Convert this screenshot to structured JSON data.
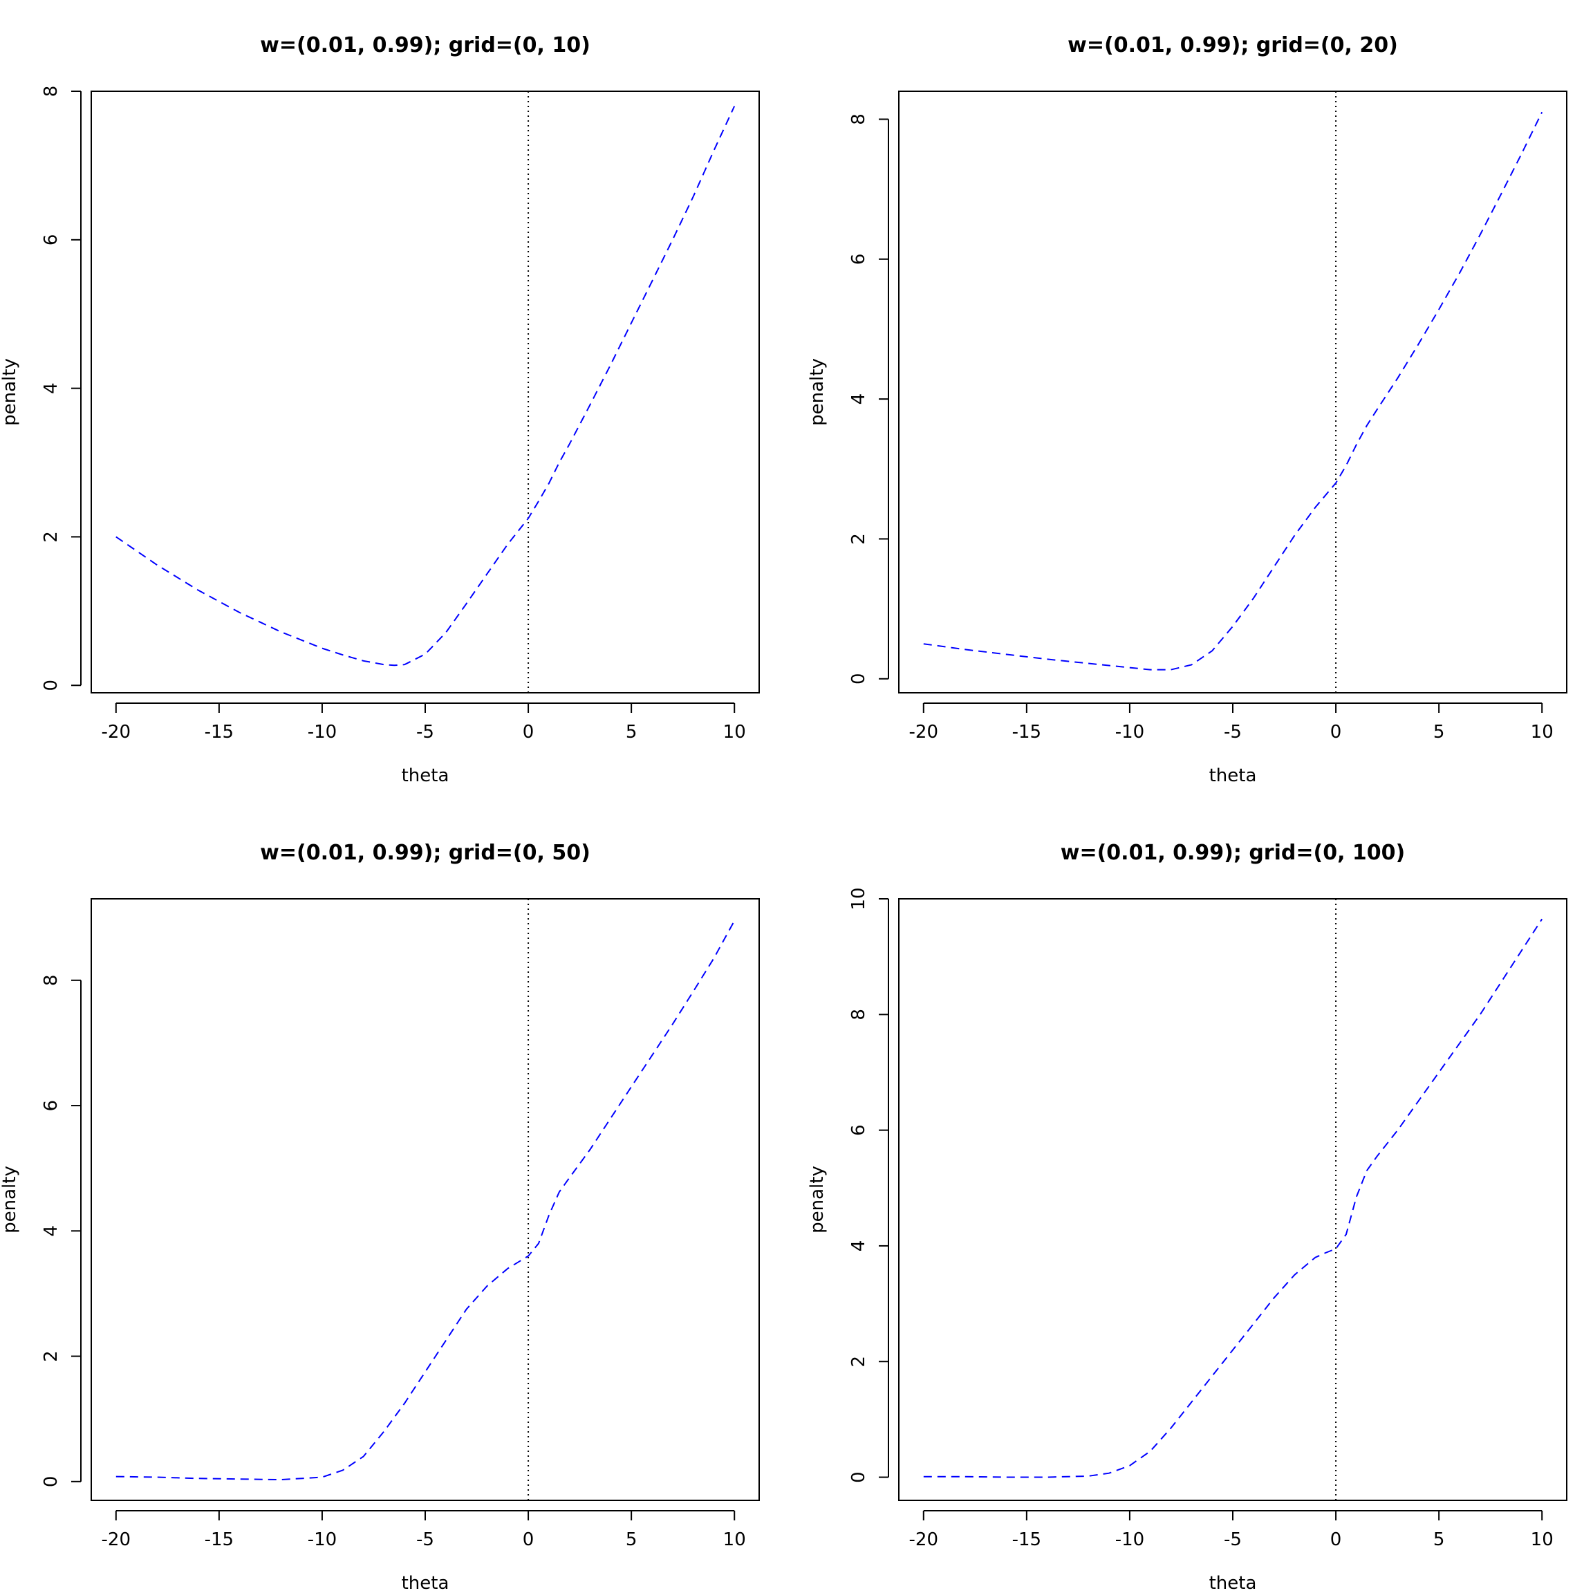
{
  "figure": {
    "background": "#ffffff"
  },
  "style": {
    "curve_color": "#0000ff",
    "vline_color": "#000000",
    "axis_color": "#000000"
  },
  "chart_data": [
    {
      "type": "line",
      "title": "w=(0.01, 0.99); grid=(0, 10)",
      "xlabel": "theta",
      "ylabel": "penalty",
      "xlim": [
        -21.2,
        11.2
      ],
      "ylim": [
        -0.1,
        8.0
      ],
      "xticks": [
        -20,
        -15,
        -10,
        -5,
        0,
        5,
        10
      ],
      "yticks": [
        0,
        2,
        4,
        6,
        8
      ],
      "line_style": "dashed",
      "vline": {
        "x": 0,
        "style": "dotted"
      },
      "series": [
        {
          "x": [
            -20,
            -18,
            -16,
            -14,
            -12,
            -10,
            -9,
            -8,
            -7,
            -6.5,
            -6,
            -5,
            -4,
            -3,
            -2,
            -1,
            0,
            0.5,
            1,
            1.5,
            2,
            3,
            4,
            5,
            6,
            7,
            8,
            9,
            10
          ],
          "y": [
            2.0,
            1.62,
            1.28,
            0.98,
            0.72,
            0.5,
            0.41,
            0.33,
            0.28,
            0.27,
            0.28,
            0.42,
            0.71,
            1.1,
            1.5,
            1.9,
            2.25,
            2.48,
            2.72,
            3.0,
            3.25,
            3.78,
            4.32,
            4.88,
            5.44,
            6.0,
            6.58,
            7.2,
            7.8
          ]
        }
      ]
    },
    {
      "type": "line",
      "title": "w=(0.01, 0.99); grid=(0, 20)",
      "xlabel": "theta",
      "ylabel": "penalty",
      "xlim": [
        -21.2,
        11.2
      ],
      "ylim": [
        -0.2,
        8.4
      ],
      "xticks": [
        -20,
        -15,
        -10,
        -5,
        0,
        5,
        10
      ],
      "yticks": [
        0,
        2,
        4,
        6,
        8
      ],
      "line_style": "dashed",
      "vline": {
        "x": 0,
        "style": "dotted"
      },
      "series": [
        {
          "x": [
            -20,
            -18,
            -16,
            -14,
            -12,
            -10,
            -9,
            -8,
            -7,
            -6,
            -5,
            -4,
            -3,
            -2,
            -1,
            0,
            0.5,
            1,
            1.5,
            2,
            3,
            4,
            5,
            6,
            7,
            8,
            9,
            10
          ],
          "y": [
            0.5,
            0.42,
            0.35,
            0.28,
            0.22,
            0.16,
            0.13,
            0.13,
            0.2,
            0.4,
            0.75,
            1.15,
            1.6,
            2.05,
            2.45,
            2.8,
            3.05,
            3.35,
            3.62,
            3.85,
            4.3,
            4.78,
            5.28,
            5.8,
            6.35,
            6.92,
            7.5,
            8.1
          ]
        }
      ]
    },
    {
      "type": "line",
      "title": "w=(0.01, 0.99); grid=(0, 50)",
      "xlabel": "theta",
      "ylabel": "penalty",
      "xlim": [
        -21.2,
        11.2
      ],
      "ylim": [
        -0.3,
        9.3
      ],
      "xticks": [
        -20,
        -15,
        -10,
        -5,
        0,
        5,
        10
      ],
      "yticks": [
        0,
        2,
        4,
        6,
        8
      ],
      "line_style": "dashed",
      "vline": {
        "x": 0,
        "style": "dotted"
      },
      "series": [
        {
          "x": [
            -20,
            -18,
            -16,
            -14,
            -12,
            -10,
            -9,
            -8,
            -7,
            -6,
            -5,
            -4,
            -3,
            -2,
            -1,
            0,
            0.5,
            1,
            1.5,
            2,
            3,
            4,
            5,
            6,
            7,
            8,
            9,
            10
          ],
          "y": [
            0.08,
            0.07,
            0.05,
            0.04,
            0.03,
            0.07,
            0.18,
            0.4,
            0.8,
            1.25,
            1.75,
            2.25,
            2.75,
            3.12,
            3.4,
            3.6,
            3.8,
            4.25,
            4.62,
            4.85,
            5.3,
            5.8,
            6.3,
            6.8,
            7.3,
            7.82,
            8.35,
            8.95
          ]
        }
      ]
    },
    {
      "type": "line",
      "title": "w=(0.01, 0.99); grid=(0, 100)",
      "xlabel": "theta",
      "ylabel": "penalty",
      "xlim": [
        -21.2,
        11.2
      ],
      "ylim": [
        -0.4,
        10.0
      ],
      "xticks": [
        -20,
        -15,
        -10,
        -5,
        0,
        5,
        10
      ],
      "yticks": [
        0,
        2,
        4,
        6,
        8,
        10
      ],
      "line_style": "dashed",
      "vline": {
        "x": 0,
        "style": "dotted"
      },
      "series": [
        {
          "x": [
            -20,
            -18,
            -16,
            -14,
            -12,
            -11,
            -10,
            -9,
            -8,
            -7,
            -6,
            -5,
            -4,
            -3,
            -2,
            -1,
            -0.5,
            0,
            0.5,
            1,
            1.5,
            2,
            3,
            4,
            5,
            6,
            7,
            8,
            9,
            10
          ],
          "y": [
            0.01,
            0.01,
            0.0,
            0.0,
            0.02,
            0.07,
            0.2,
            0.45,
            0.85,
            1.3,
            1.75,
            2.2,
            2.65,
            3.1,
            3.5,
            3.8,
            3.88,
            3.95,
            4.2,
            4.85,
            5.3,
            5.55,
            6.0,
            6.5,
            7.0,
            7.5,
            8.0,
            8.55,
            9.1,
            9.65
          ]
        }
      ]
    }
  ]
}
